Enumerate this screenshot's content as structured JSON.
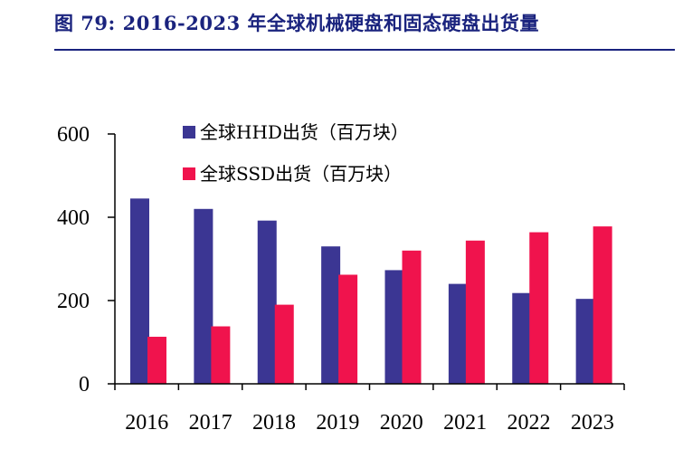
{
  "figure": {
    "title": "图 79: 2016-2023 年全球机械硬盘和固态硬盘出货量"
  },
  "colors": {
    "title": "#1a237e",
    "hdd": "#3b3693",
    "ssd": "#f0134d",
    "axis": "#000000"
  },
  "chart_data": {
    "type": "bar",
    "title": "",
    "xlabel": "",
    "ylabel": "",
    "ylim": [
      0,
      600
    ],
    "yticks": [
      0,
      200,
      400,
      600
    ],
    "categories": [
      "2016",
      "2017",
      "2018",
      "2019",
      "2020",
      "2021",
      "2022",
      "2023"
    ],
    "series": [
      {
        "name": "全球HHD出货（百万块）",
        "color_key": "hdd",
        "values": [
          445,
          420,
          392,
          330,
          273,
          240,
          218,
          204
        ]
      },
      {
        "name": "全球SSD出货（百万块）",
        "color_key": "ssd",
        "values": [
          113,
          138,
          190,
          262,
          320,
          344,
          364,
          378
        ]
      }
    ],
    "legend_position": "top-center"
  }
}
